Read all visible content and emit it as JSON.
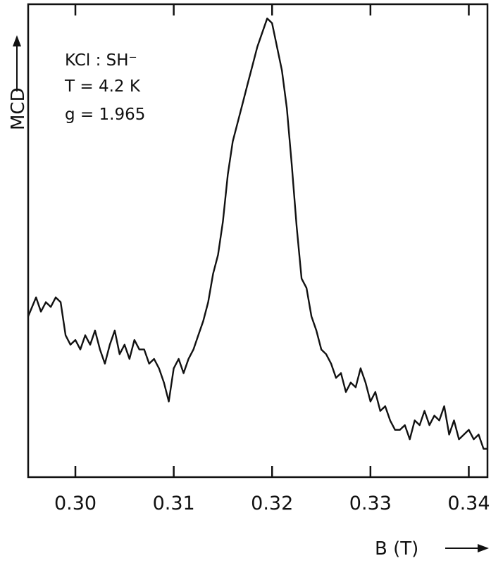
{
  "chart_data": {
    "type": "line",
    "title": "",
    "xlabel": "B (T)",
    "ylabel": "MCD",
    "xlim": [
      0.2952,
      0.3419
    ],
    "ylim": [
      0,
      1
    ],
    "x_ticks": [
      0.3,
      0.31,
      0.32,
      0.33,
      0.34
    ],
    "x_tick_labels": [
      "0.30",
      "0.31",
      "0.32",
      "0.33",
      "0.34"
    ],
    "y_ticks_shown": false,
    "grid": false,
    "annotations": [
      "KCl : SH⁻",
      "T = 4.2 K",
      "g = 1.965"
    ],
    "series": [
      {
        "x": [
          0.2952,
          0.296,
          0.2965,
          0.297,
          0.2975,
          0.298,
          0.2985,
          0.299,
          0.2995,
          0.3,
          0.3005,
          0.301,
          0.3015,
          0.302,
          0.3025,
          0.303,
          0.3035,
          0.304,
          0.3045,
          0.305,
          0.3055,
          0.306,
          0.3065,
          0.307,
          0.3075,
          0.308,
          0.3085,
          0.309,
          0.3095,
          0.31,
          0.3105,
          0.311,
          0.3115,
          0.312,
          0.3125,
          0.313,
          0.3135,
          0.314,
          0.3145,
          0.315,
          0.3155,
          0.316,
          0.3165,
          0.317,
          0.3175,
          0.318,
          0.3185,
          0.319,
          0.3195,
          0.32,
          0.3205,
          0.321,
          0.3215,
          0.322,
          0.3225,
          0.323,
          0.3235,
          0.324,
          0.3245,
          0.325,
          0.3255,
          0.326,
          0.3265,
          0.327,
          0.3275,
          0.328,
          0.3285,
          0.329,
          0.3295,
          0.33,
          0.3305,
          0.331,
          0.3315,
          0.332,
          0.3325,
          0.333,
          0.3335,
          0.334,
          0.3345,
          0.335,
          0.3355,
          0.336,
          0.3365,
          0.337,
          0.3375,
          0.338,
          0.3385,
          0.339,
          0.3395,
          0.34,
          0.3405,
          0.341,
          0.3415,
          0.3419
        ],
        "y": [
          0.34,
          0.38,
          0.35,
          0.37,
          0.36,
          0.38,
          0.37,
          0.3,
          0.28,
          0.29,
          0.27,
          0.3,
          0.28,
          0.31,
          0.27,
          0.24,
          0.28,
          0.31,
          0.26,
          0.28,
          0.25,
          0.29,
          0.27,
          0.27,
          0.24,
          0.25,
          0.23,
          0.2,
          0.16,
          0.23,
          0.25,
          0.22,
          0.25,
          0.27,
          0.3,
          0.33,
          0.37,
          0.43,
          0.47,
          0.54,
          0.64,
          0.71,
          0.75,
          0.79,
          0.83,
          0.87,
          0.91,
          0.94,
          0.97,
          0.96,
          0.91,
          0.86,
          0.78,
          0.66,
          0.53,
          0.42,
          0.4,
          0.34,
          0.31,
          0.27,
          0.26,
          0.24,
          0.21,
          0.22,
          0.18,
          0.2,
          0.19,
          0.23,
          0.2,
          0.16,
          0.18,
          0.14,
          0.15,
          0.12,
          0.1,
          0.1,
          0.11,
          0.08,
          0.12,
          0.11,
          0.14,
          0.11,
          0.13,
          0.12,
          0.15,
          0.09,
          0.12,
          0.08,
          0.09,
          0.1,
          0.08,
          0.09,
          0.06,
          0.06
        ]
      }
    ]
  }
}
